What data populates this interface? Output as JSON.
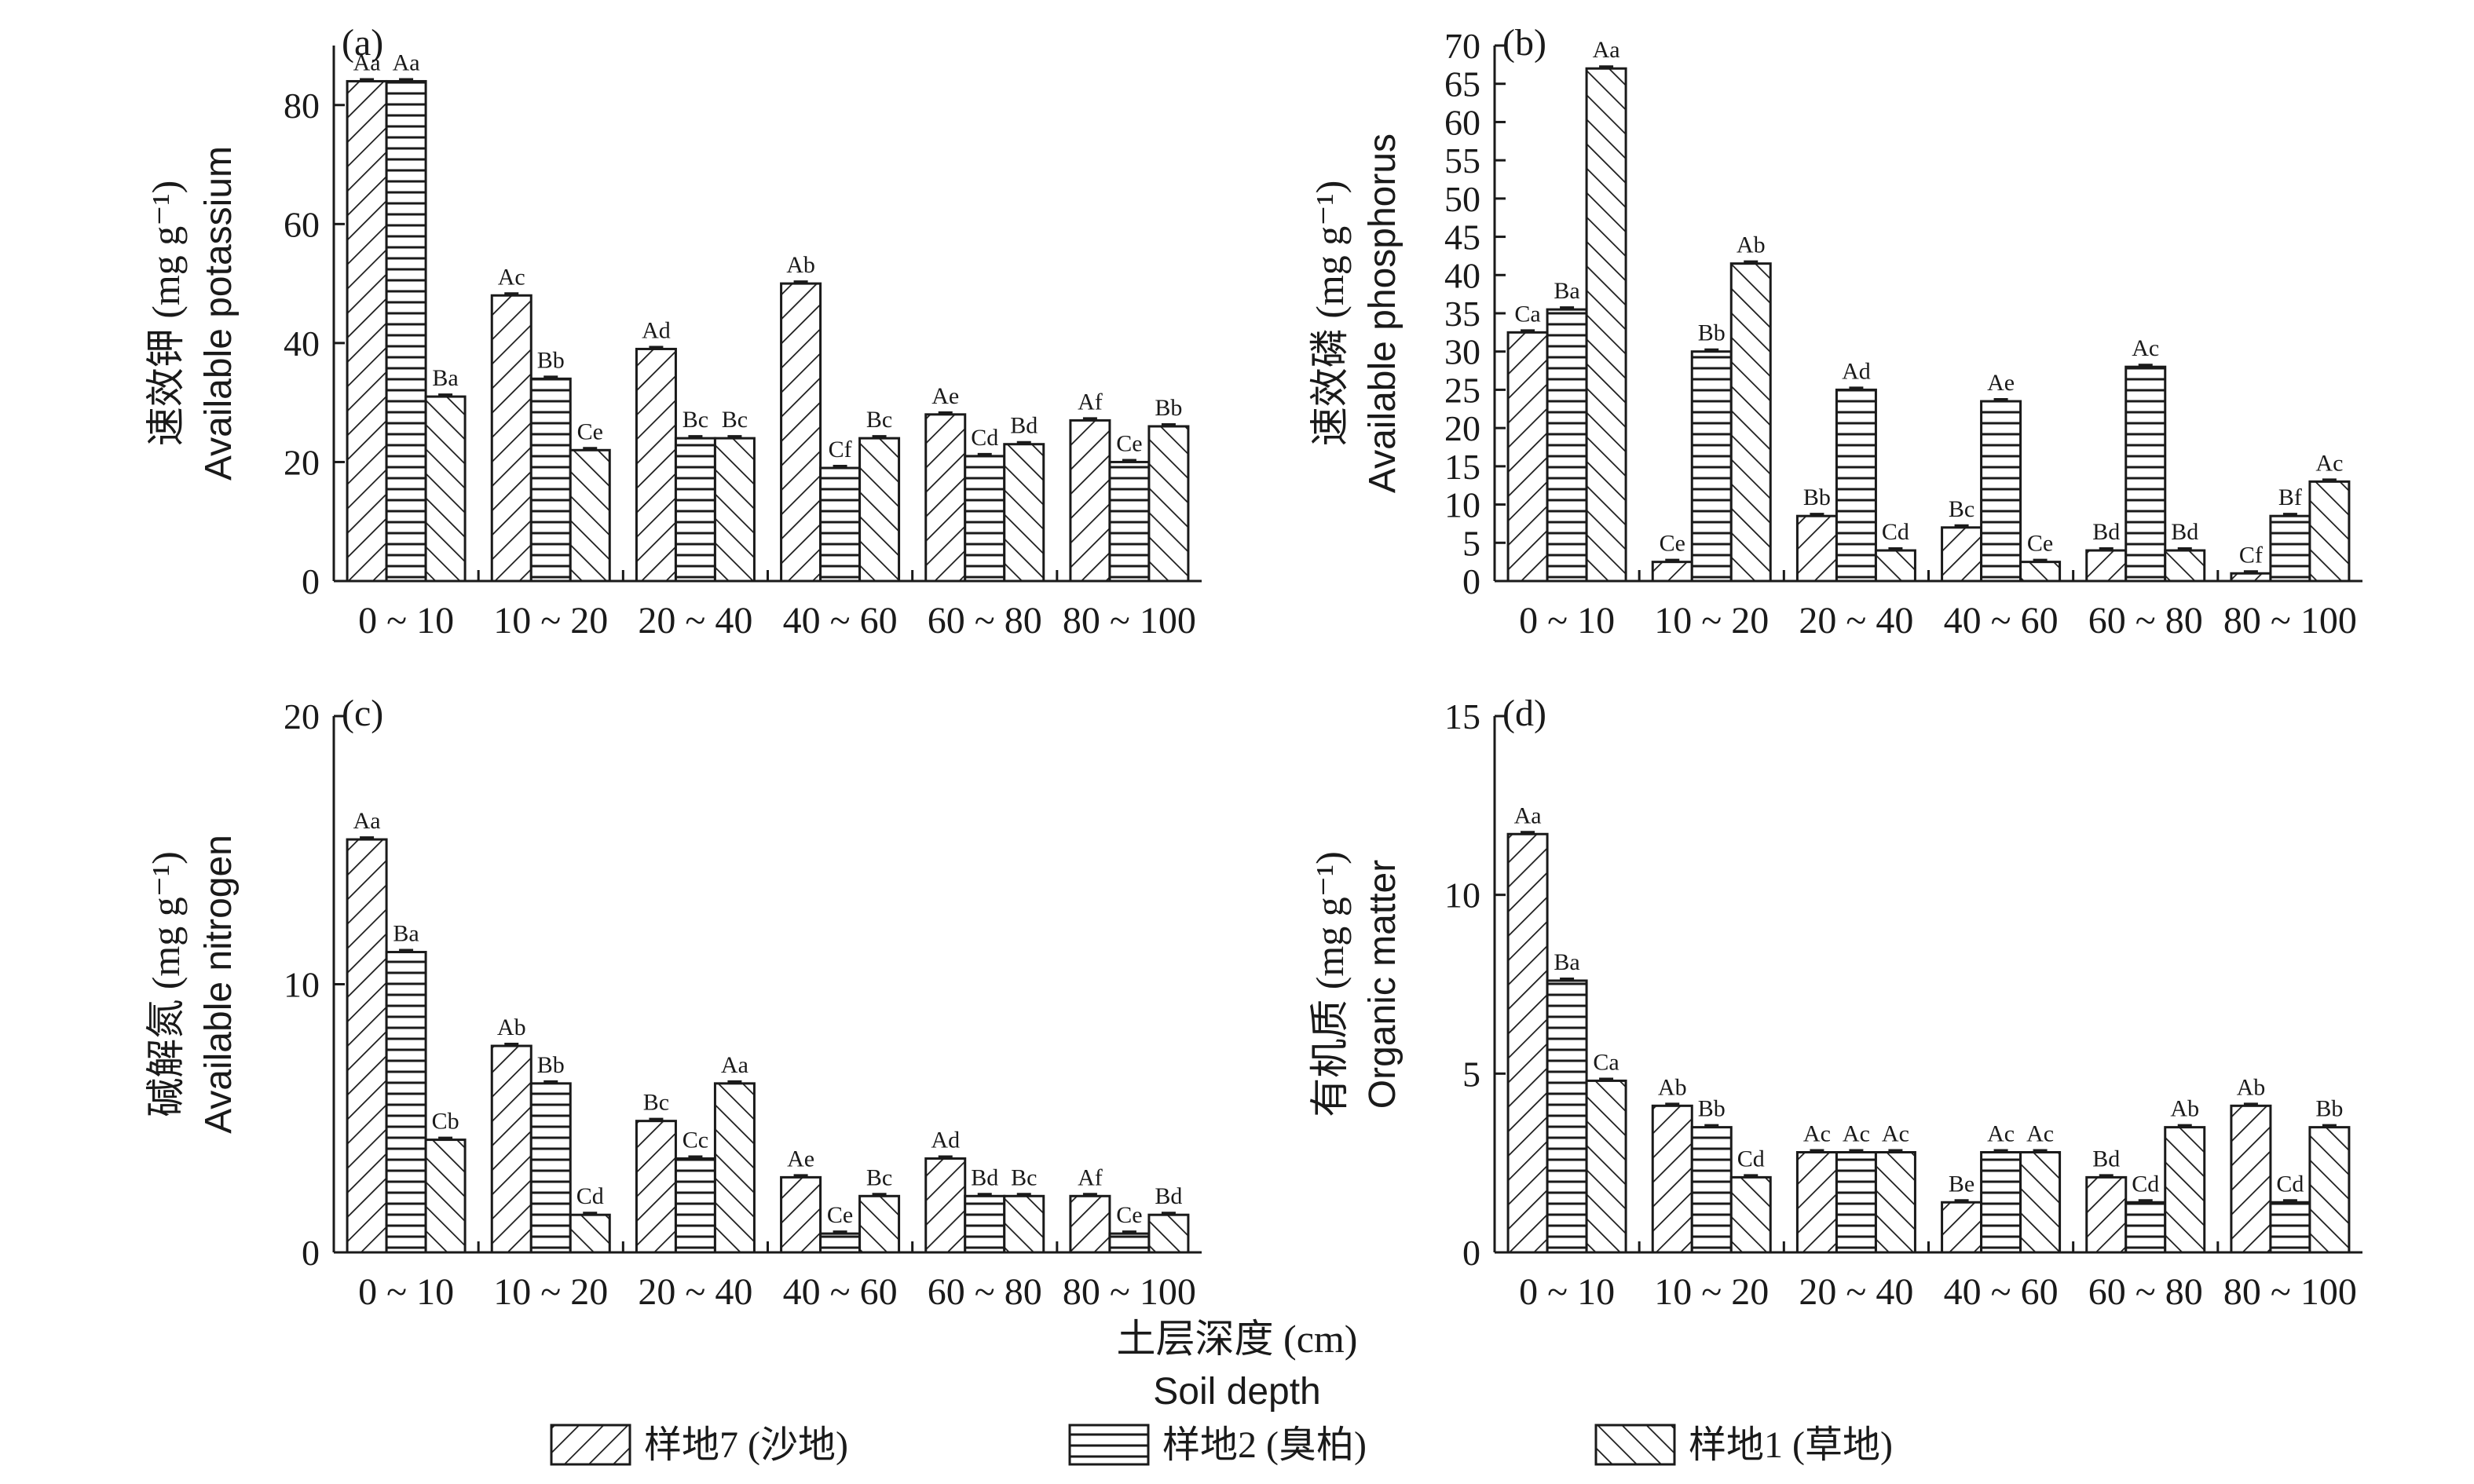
{
  "chart_data": [
    {
      "type": "bar",
      "panel_label": "(a)",
      "ylabel_cn": "速效钾",
      "ylabel_unit": "(mg g⁻¹)",
      "ylabel_en": "Available potassium",
      "ylim": [
        0,
        90
      ],
      "yticks": [
        "0",
        "20",
        "40",
        "60",
        "80"
      ],
      "ytick_values": [
        0,
        20,
        40,
        60,
        80
      ],
      "categories": [
        "0 ~ 10",
        "10 ~ 20",
        "20 ~ 40",
        "40 ~ 60",
        "60 ~ 80",
        "80 ~ 100"
      ],
      "series": [
        {
          "name": "样地7 (沙地)",
          "values": [
            84,
            48,
            39,
            50,
            28,
            27
          ],
          "labels": [
            "Aa",
            "Ac",
            "Ad",
            "Ab",
            "Ae",
            "Af"
          ]
        },
        {
          "name": "样地2 (臭柏)",
          "values": [
            84,
            34,
            24,
            19,
            21,
            20
          ],
          "labels": [
            "Aa",
            "Bb",
            "Bc",
            "Cf",
            "Cd",
            "Ce"
          ]
        },
        {
          "name": "样地1 (草地)",
          "values": [
            31,
            22,
            24,
            24,
            23,
            26
          ],
          "labels": [
            "Ba",
            "Ce",
            "Bc",
            "Bc",
            "Bd",
            "Bb"
          ]
        }
      ]
    },
    {
      "type": "bar",
      "panel_label": "(b)",
      "ylabel_cn": "速效磷",
      "ylabel_unit": "(mg g⁻¹)",
      "ylabel_en": "Available phosphorus",
      "ylim": [
        0,
        70
      ],
      "yticks": [
        "0",
        "5",
        "10",
        "15",
        "20",
        "25",
        "30",
        "35",
        "40",
        "45",
        "50",
        "55",
        "60",
        "65",
        "70"
      ],
      "ytick_values": [
        0,
        5,
        10,
        15,
        20,
        25,
        30,
        35,
        40,
        45,
        50,
        55,
        60,
        65,
        70
      ],
      "categories": [
        "0 ~ 10",
        "10 ~ 20",
        "20 ~ 40",
        "40 ~ 60",
        "60 ~ 80",
        "80 ~ 100"
      ],
      "series": [
        {
          "name": "样地7 (沙地)",
          "values": [
            32.5,
            2.5,
            8.5,
            7,
            4,
            1
          ],
          "labels": [
            "Ca",
            "Ce",
            "Bb",
            "Bc",
            "Bd",
            "Cf"
          ]
        },
        {
          "name": "样地2 (臭柏)",
          "values": [
            35.5,
            30,
            25,
            23.5,
            28,
            8.5
          ],
          "labels": [
            "Ba",
            "Bb",
            "Ad",
            "Ae",
            "Ac",
            "Bf"
          ]
        },
        {
          "name": "样地1 (草地)",
          "values": [
            67,
            41.5,
            4,
            2.5,
            4,
            13
          ],
          "labels": [
            "Aa",
            "Ab",
            "Cd",
            "Ce",
            "Bd",
            "Ac"
          ]
        }
      ]
    },
    {
      "type": "bar",
      "panel_label": "(c)",
      "ylabel_cn": "碱解氮",
      "ylabel_unit": "(mg g⁻¹)",
      "ylabel_en": "Available nitrogen",
      "ylim": [
        0,
        20
      ],
      "yticks": [
        "0",
        "10",
        "20"
      ],
      "ytick_values": [
        0,
        10,
        20
      ],
      "categories": [
        "0 ~ 10",
        "10 ~ 20",
        "20 ~ 40",
        "40 ~ 60",
        "60 ~ 80",
        "80 ~ 100"
      ],
      "series": [
        {
          "name": "样地7 (沙地)",
          "values": [
            15.4,
            7.7,
            4.9,
            2.8,
            3.5,
            2.1
          ],
          "labels": [
            "Aa",
            "Ab",
            "Bc",
            "Ae",
            "Ad",
            "Af"
          ]
        },
        {
          "name": "样地2 (臭柏)",
          "values": [
            11.2,
            6.3,
            3.5,
            0.7,
            2.1,
            0.7
          ],
          "labels": [
            "Ba",
            "Bb",
            "Cc",
            "Ce",
            "Bd",
            "Ce"
          ]
        },
        {
          "name": "样地1 (草地)",
          "values": [
            4.2,
            1.4,
            6.3,
            2.1,
            2.1,
            1.4
          ],
          "labels": [
            "Cb",
            "Cd",
            "Aa",
            "Bc",
            "Bc",
            "Bd"
          ]
        }
      ]
    },
    {
      "type": "bar",
      "panel_label": "(d)",
      "ylabel_cn": "有机质",
      "ylabel_unit": "(mg g⁻¹)",
      "ylabel_en": "Organic matter",
      "ylim": [
        0,
        15
      ],
      "yticks": [
        "0",
        "5",
        "10",
        "15"
      ],
      "ytick_values": [
        0,
        5,
        10,
        15
      ],
      "categories": [
        "0 ~ 10",
        "10 ~ 20",
        "20 ~ 40",
        "40 ~ 60",
        "60 ~ 80",
        "80 ~ 100"
      ],
      "series": [
        {
          "name": "样地7 (沙地)",
          "values": [
            11.7,
            4.1,
            2.8,
            1.4,
            2.1,
            4.1
          ],
          "labels": [
            "Aa",
            "Ab",
            "Ac",
            "Be",
            "Bd",
            "Ab"
          ]
        },
        {
          "name": "样地2 (臭柏)",
          "values": [
            7.6,
            3.5,
            2.8,
            2.8,
            1.4,
            1.4
          ],
          "labels": [
            "Ba",
            "Bb",
            "Ac",
            "Ac",
            "Cd",
            "Cd"
          ]
        },
        {
          "name": "样地1 (草地)",
          "values": [
            4.8,
            2.1,
            2.8,
            2.8,
            3.5,
            3.5
          ],
          "labels": [
            "Ca",
            "Cd",
            "Ac",
            "Ac",
            "Ab",
            "Bb"
          ]
        }
      ]
    }
  ],
  "xaxis": {
    "label_cn": "土层深度 (cm)",
    "label_en": "Soil depth"
  },
  "legend": {
    "placement": "bottom",
    "items": [
      {
        "label": "样地7 (沙地)",
        "pattern": "backslash-hatch"
      },
      {
        "label": "样地2 (臭柏)",
        "pattern": "horizontal-lines"
      },
      {
        "label": "样地1 (草地)",
        "pattern": "forward-slash-hatch"
      }
    ]
  },
  "colors": {
    "ink": "#1a1a1a",
    "background": "#ffffff"
  }
}
